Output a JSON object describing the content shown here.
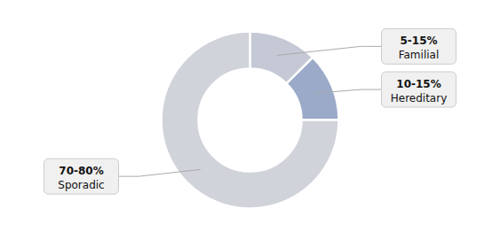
{
  "chart_data": {
    "type": "donut",
    "categories": [
      "Familial",
      "Hereditary",
      "Sporadic"
    ],
    "values": [
      12.5,
      12.5,
      75
    ],
    "value_labels": [
      "5-15%",
      "10-15%",
      "70-80%"
    ],
    "colors": [
      "#c5c9d6",
      "#9aaac8",
      "#d1d3da"
    ]
  }
}
